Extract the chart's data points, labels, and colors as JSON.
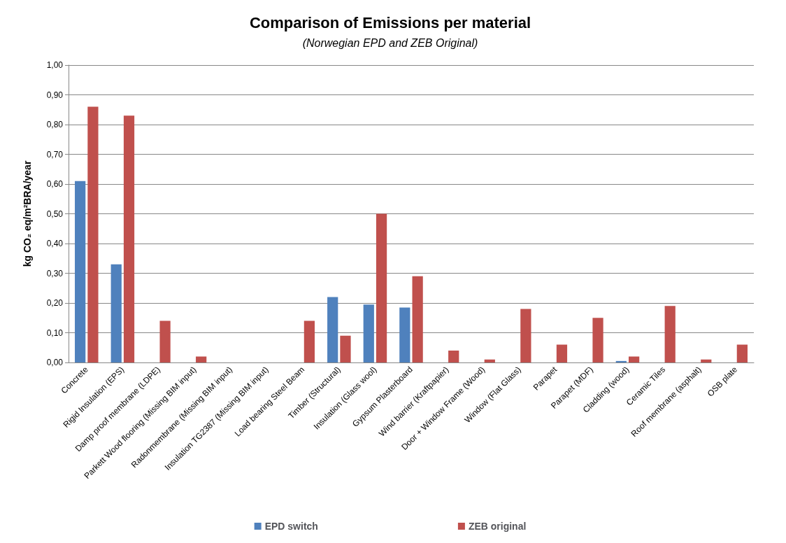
{
  "chart_data": {
    "type": "bar",
    "title": "Comparison of Emissions per material",
    "subtitle": "(Norwegian EPD and ZEB Original)",
    "ylabel": "kg CO₂ eq/m²BRA/year",
    "categories": [
      "Concrete",
      "Rigid Insulation (EPS)",
      "Damp proof membrane (LDPE)",
      "Parkett Wood flooring (Missing BIM input)",
      "Radonmembrane (Missing BIM input)",
      "Insulation TG2387 (Missing BIM input)",
      "Load bearing Steel Beam",
      "Timber (Structural)",
      "Insulation (Glass wool)",
      "Gypsum Plasterboard",
      "Wind barrier (Kraftpapier)",
      "Door + Window Frame (Wood)",
      "Window (Flat Glass)",
      "Parapet",
      "Parapet (MDF)",
      "Cladding (wood)",
      "Ceramic Tiles",
      "Roof membrane (asphalt)",
      "OSB plate"
    ],
    "series": [
      {
        "name": "EPD switch",
        "color": "#4f81bd",
        "values": [
          0.61,
          0.33,
          null,
          null,
          null,
          null,
          null,
          0.22,
          0.195,
          0.185,
          null,
          null,
          null,
          null,
          null,
          0.005,
          null,
          null,
          null
        ]
      },
      {
        "name": "ZEB original",
        "color": "#c0504d",
        "values": [
          0.86,
          0.83,
          0.14,
          0.02,
          null,
          null,
          0.14,
          0.09,
          0.5,
          0.29,
          0.04,
          0.01,
          0.18,
          0.06,
          0.15,
          0.02,
          0.19,
          0.01,
          0.06
        ]
      }
    ],
    "ylim": [
      0,
      1
    ],
    "yticks": [
      {
        "value": 0,
        "label": "0,00"
      },
      {
        "value": 0.1,
        "label": "0,10"
      },
      {
        "value": 0.2,
        "label": "0,20"
      },
      {
        "value": 0.3,
        "label": "0,30"
      },
      {
        "value": 0.4,
        "label": "0,40"
      },
      {
        "value": 0.5,
        "label": "0,50"
      },
      {
        "value": 0.6,
        "label": "0,60"
      },
      {
        "value": 0.7,
        "label": "0,70"
      },
      {
        "value": 0.8,
        "label": "0,80"
      },
      {
        "value": 0.9,
        "label": "0,90"
      },
      {
        "value": 1,
        "label": "1,00"
      }
    ],
    "grid": "y",
    "legend": "bottom"
  }
}
